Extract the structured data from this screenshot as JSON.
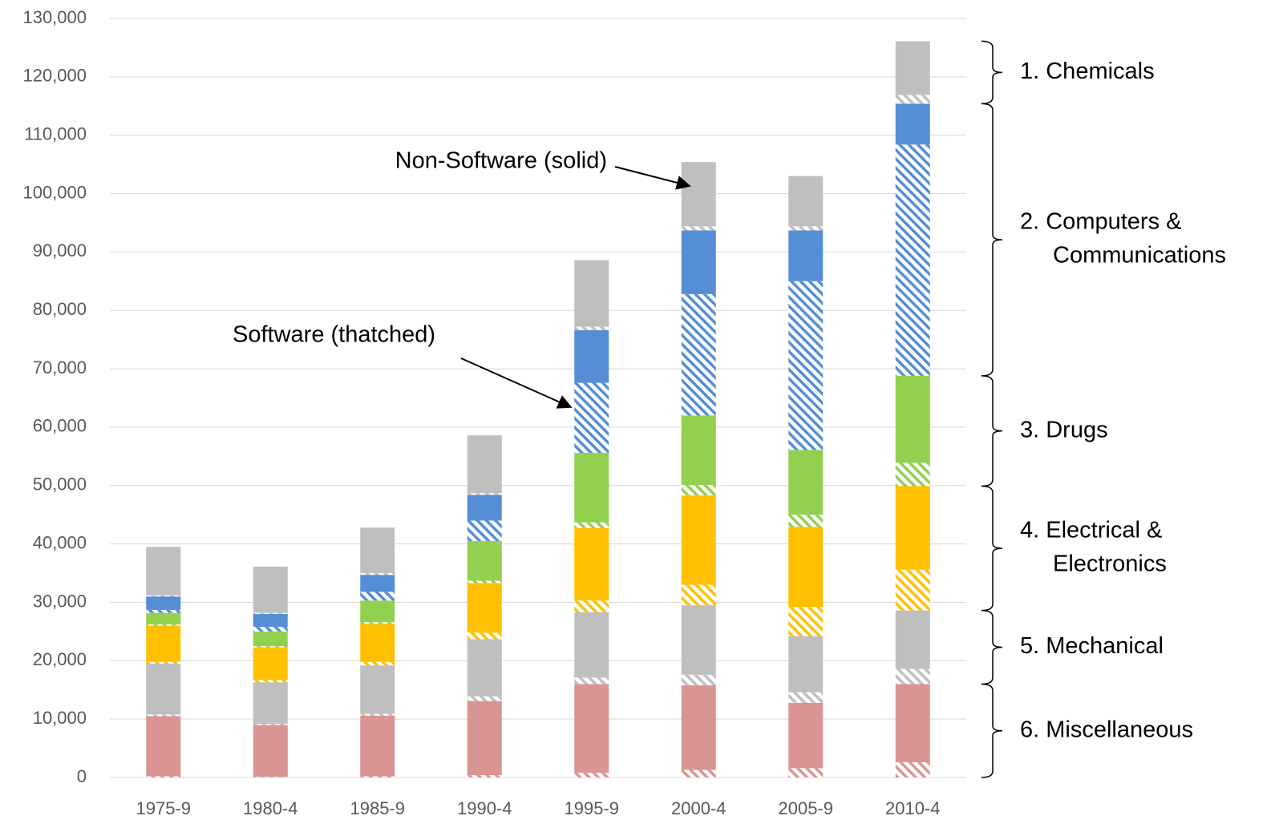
{
  "chart_data": {
    "type": "stacked_bar",
    "categories": [
      "1975-9",
      "1980-4",
      "1985-9",
      "1990-4",
      "1995-9",
      "2000-4",
      "2005-9",
      "2010-4"
    ],
    "series": [
      {
        "color": "#d99594",
        "hatched": true,
        "values": [
          200,
          100,
          200,
          400,
          800,
          1300,
          1600,
          2600
        ]
      },
      {
        "color": "#d99594",
        "hatched": false,
        "values": [
          10300,
          8900,
          10400,
          12700,
          15200,
          14500,
          11200,
          13400
        ]
      },
      {
        "color": "#bfbfbf",
        "hatched": true,
        "values": [
          300,
          200,
          300,
          800,
          1100,
          1800,
          1800,
          2600
        ]
      },
      {
        "color": "#bfbfbf",
        "hatched": false,
        "values": [
          8700,
          7100,
          8300,
          9800,
          11200,
          11900,
          9600,
          10000
        ]
      },
      {
        "color": "#ffc000",
        "hatched": true,
        "values": [
          300,
          400,
          600,
          1100,
          2000,
          3500,
          5000,
          7000
        ]
      },
      {
        "color": "#ffc000",
        "hatched": false,
        "values": [
          6200,
          5600,
          6500,
          8500,
          12400,
          15300,
          13700,
          14300
        ]
      },
      {
        "color": "#92d050",
        "hatched": true,
        "values": [
          200,
          200,
          300,
          400,
          1000,
          1800,
          2100,
          4000
        ]
      },
      {
        "color": "#92d050",
        "hatched": false,
        "values": [
          2000,
          2500,
          3700,
          6800,
          11900,
          11900,
          11100,
          14900
        ]
      },
      {
        "color": "#558ed5",
        "hatched": true,
        "values": [
          500,
          800,
          1500,
          3500,
          12000,
          20800,
          28900,
          39600
        ]
      },
      {
        "color": "#558ed5",
        "hatched": false,
        "values": [
          2300,
          2200,
          2900,
          4400,
          9000,
          10900,
          8700,
          7000
        ]
      },
      {
        "color": "#bfbfbf",
        "hatched": true,
        "values": [
          200,
          200,
          300,
          300,
          600,
          700,
          700,
          1500
        ]
      },
      {
        "color": "#bfbfbf",
        "hatched": false,
        "values": [
          8300,
          7900,
          7800,
          9900,
          11400,
          11000,
          8600,
          9200
        ]
      }
    ],
    "groups": [
      [
        "1. Chemicals"
      ],
      [
        "2. Computers &",
        "Communications"
      ],
      [
        "3. Drugs"
      ],
      [
        "4. Electrical &",
        "Electronics"
      ],
      [
        "5. Mechanical"
      ],
      [
        "6. Miscellaneous"
      ]
    ],
    "annotations": [
      "Non-Software (solid)",
      "Software (thatched)"
    ],
    "ylim": [
      0,
      130000
    ],
    "yticks": [
      0,
      {
        "value": 10000,
        "label": "10,000"
      },
      {
        "value": 20000,
        "label": "20,000"
      },
      {
        "value": 30000,
        "label": "30,000"
      },
      {
        "value": 40000,
        "label": "40,000"
      },
      {
        "value": 50000,
        "label": "50,000"
      },
      {
        "value": 60000,
        "label": "60,000"
      },
      {
        "value": 70000,
        "label": "70,000"
      },
      {
        "value": 80000,
        "label": "80,000"
      },
      {
        "value": 90000,
        "label": "90,000"
      },
      {
        "value": 100000,
        "label": "100,000"
      },
      {
        "value": 110000,
        "label": "110,000"
      },
      {
        "value": 120000,
        "label": "120,000"
      },
      {
        "value": 130000,
        "label": "130,000"
      }
    ],
    "grid": true
  }
}
